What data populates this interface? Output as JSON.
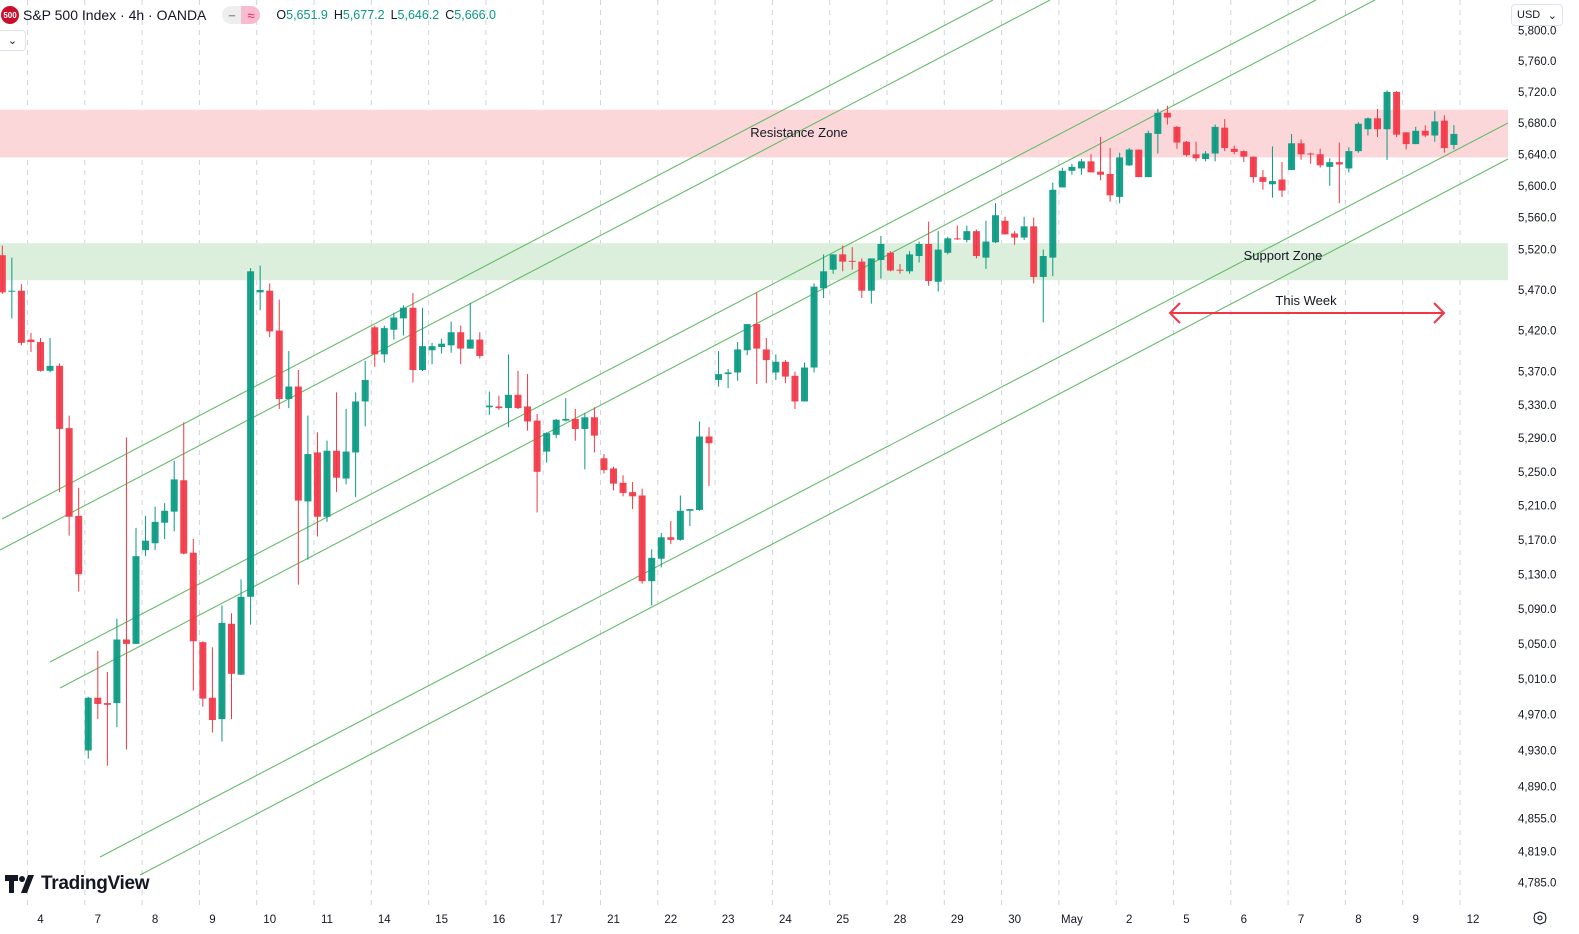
{
  "header": {
    "symbol_badge": "500",
    "title": "S&P 500 Index · 4h · OANDA",
    "pill_left_icon": "minus-icon",
    "pill_right_icon": "approx-icon",
    "pill_left_glyph": "−",
    "pill_right_glyph": "≈",
    "ohlc": {
      "o_label": "O",
      "o": "5,651.9",
      "h_label": "H",
      "h": "5,677.2",
      "l_label": "L",
      "l": "5,646.2",
      "c_label": "C",
      "c": "5,666.0"
    }
  },
  "collapse_button_glyph": "⌄",
  "currency": {
    "label": "USD",
    "chevron": "⌄"
  },
  "branding": {
    "logo_text": "TradingView"
  },
  "colors": {
    "up": "#089981",
    "down": "#F23645",
    "channel": "#66bb6a",
    "resistance_zone": "#fbd7da",
    "support_zone": "#dcefdc",
    "arrow": "#F23645"
  },
  "annotations": {
    "resistance": "Resistance Zone",
    "support": "Support Zone",
    "this_week": "This Week"
  },
  "chart_data": {
    "type": "candlestick",
    "title": "S&P 500 Index · 4h · OANDA",
    "y_scale": "log",
    "ylim": [
      4770,
      5820
    ],
    "grid": {
      "vertical": "dashed-daily",
      "horizontal": false
    },
    "y_ticks": [
      5800,
      5760,
      5720,
      5680,
      5640,
      5600,
      5560,
      5520,
      5470,
      5420,
      5370,
      5330,
      5290,
      5250,
      5210,
      5170,
      5130,
      5090,
      5050,
      5010,
      4970,
      4930,
      4890,
      4855,
      4819,
      4785
    ],
    "y_tick_labels": [
      "5,800.0",
      "5,760.0",
      "5,720.0",
      "5,680.0",
      "5,640.0",
      "5,600.0",
      "5,560.0",
      "5,520.0",
      "5,470.0",
      "5,420.0",
      "5,370.0",
      "5,330.0",
      "5,290.0",
      "5,250.0",
      "5,210.0",
      "5,170.0",
      "5,130.0",
      "5,090.0",
      "5,050.0",
      "5,010.0",
      "4,970.0",
      "4,930.0",
      "4,890.0",
      "4,855.0",
      "4,819.0",
      "4,785.0"
    ],
    "x_tick_labels": [
      "4",
      "7",
      "8",
      "9",
      "10",
      "11",
      "14",
      "15",
      "16",
      "17",
      "21",
      "22",
      "23",
      "24",
      "25",
      "28",
      "29",
      "30",
      "May",
      "2",
      "5",
      "6",
      "7",
      "8",
      "9",
      "12"
    ],
    "zones": [
      {
        "name": "Resistance Zone",
        "from": 5636,
        "to": 5697
      },
      {
        "name": "Support Zone",
        "from": 5482,
        "to": 5528
      }
    ],
    "candles_ohlc": [
      [
        5513,
        5525,
        5465,
        5467
      ],
      [
        5468,
        5510,
        5435,
        5469
      ],
      [
        5469,
        5477,
        5402,
        5405
      ],
      [
        5409,
        5417,
        5394,
        5406
      ],
      [
        5406,
        5411,
        5370,
        5371
      ],
      [
        5371,
        5411,
        5369,
        5377
      ],
      [
        5377,
        5380,
        5226,
        5301
      ],
      [
        5302,
        5317,
        5175,
        5197
      ],
      [
        5198,
        5231,
        5110,
        5130
      ],
      [
        4930,
        4990,
        4921,
        4989
      ],
      [
        4989,
        5042,
        4965,
        4982
      ],
      [
        4983,
        5018,
        4913,
        4981
      ],
      [
        4983,
        5079,
        4956,
        5055
      ],
      [
        5055,
        5291,
        4931,
        5050
      ],
      [
        5050,
        5184,
        5050,
        5151
      ],
      [
        5158,
        5198,
        5151,
        5169
      ],
      [
        5166,
        5209,
        5158,
        5191
      ],
      [
        5190,
        5213,
        5171,
        5204
      ],
      [
        5203,
        5263,
        5180,
        5241
      ],
      [
        5240,
        5309,
        5153,
        5154
      ],
      [
        5155,
        5171,
        4997,
        5053
      ],
      [
        5052,
        5053,
        4979,
        4988
      ],
      [
        4989,
        5046,
        4950,
        4964
      ],
      [
        4965,
        5094,
        4940,
        5074
      ],
      [
        5073,
        5085,
        4965,
        5016
      ],
      [
        5015,
        5124,
        5015,
        5104
      ],
      [
        5104,
        5497,
        5072,
        5493
      ],
      [
        5467,
        5500,
        5445,
        5470
      ],
      [
        5469,
        5478,
        5412,
        5419
      ],
      [
        5420,
        5458,
        5325,
        5337
      ],
      [
        5337,
        5395,
        5326,
        5352
      ],
      [
        5352,
        5372,
        5118,
        5216
      ],
      [
        5215,
        5317,
        5147,
        5271
      ],
      [
        5273,
        5297,
        5174,
        5197
      ],
      [
        5197,
        5287,
        5191,
        5275
      ],
      [
        5275,
        5345,
        5226,
        5243
      ],
      [
        5242,
        5325,
        5235,
        5274
      ],
      [
        5273,
        5345,
        5220,
        5334
      ],
      [
        5334,
        5383,
        5304,
        5360
      ],
      [
        5424,
        5426,
        5376,
        5391
      ],
      [
        5391,
        5426,
        5381,
        5423
      ],
      [
        5421,
        5442,
        5409,
        5436
      ],
      [
        5435,
        5451,
        5414,
        5448
      ],
      [
        5448,
        5466,
        5357,
        5372
      ],
      [
        5372,
        5448,
        5371,
        5401
      ],
      [
        5396,
        5405,
        5379,
        5401
      ],
      [
        5400,
        5410,
        5392,
        5404
      ],
      [
        5402,
        5431,
        5393,
        5418
      ],
      [
        5418,
        5426,
        5379,
        5398
      ],
      [
        5398,
        5454,
        5398,
        5409
      ],
      [
        5409,
        5418,
        5386,
        5389
      ],
      [
        5327,
        5346,
        5318,
        5329
      ],
      [
        5328,
        5341,
        5324,
        5326
      ],
      [
        5326,
        5391,
        5303,
        5342
      ],
      [
        5342,
        5371,
        5325,
        5326
      ],
      [
        5328,
        5367,
        5299,
        5310
      ],
      [
        5311,
        5319,
        5202,
        5250
      ],
      [
        5274,
        5297,
        5261,
        5296
      ],
      [
        5294,
        5313,
        5290,
        5312
      ],
      [
        5311,
        5338,
        5310,
        5313
      ],
      [
        5313,
        5325,
        5287,
        5301
      ],
      [
        5301,
        5320,
        5253,
        5315
      ],
      [
        5315,
        5327,
        5273,
        5293
      ],
      [
        5266,
        5271,
        5248,
        5252
      ],
      [
        5254,
        5256,
        5228,
        5236
      ],
      [
        5237,
        5246,
        5221,
        5225
      ],
      [
        5226,
        5238,
        5206,
        5221
      ],
      [
        5222,
        5230,
        5119,
        5122
      ],
      [
        5122,
        5159,
        5094,
        5149
      ],
      [
        5148,
        5178,
        5138,
        5173
      ],
      [
        5173,
        5192,
        5165,
        5170
      ],
      [
        5170,
        5222,
        5169,
        5204
      ],
      [
        5204,
        5206,
        5186,
        5206
      ],
      [
        5205,
        5310,
        5204,
        5292
      ],
      [
        5292,
        5303,
        5233,
        5284
      ],
      [
        5360,
        5395,
        5352,
        5367
      ],
      [
        5367,
        5373,
        5350,
        5369
      ],
      [
        5369,
        5406,
        5359,
        5397
      ],
      [
        5396,
        5428,
        5390,
        5428
      ],
      [
        5428,
        5467,
        5355,
        5398
      ],
      [
        5397,
        5411,
        5356,
        5384
      ],
      [
        5369,
        5391,
        5360,
        5382
      ],
      [
        5382,
        5384,
        5356,
        5364
      ],
      [
        5365,
        5370,
        5325,
        5334
      ],
      [
        5334,
        5381,
        5334,
        5375
      ],
      [
        5375,
        5478,
        5369,
        5474
      ],
      [
        5472,
        5514,
        5460,
        5493
      ],
      [
        5495,
        5514,
        5490,
        5514
      ],
      [
        5514,
        5525,
        5493,
        5505
      ],
      [
        5506,
        5523,
        5495,
        5505
      ],
      [
        5505,
        5509,
        5460,
        5469
      ],
      [
        5469,
        5509,
        5453,
        5509
      ],
      [
        5507,
        5537,
        5484,
        5527
      ],
      [
        5516,
        5518,
        5493,
        5494
      ],
      [
        5495,
        5502,
        5490,
        5494
      ],
      [
        5493,
        5518,
        5490,
        5514
      ],
      [
        5512,
        5530,
        5504,
        5527
      ],
      [
        5527,
        5555,
        5475,
        5481
      ],
      [
        5480,
        5543,
        5468,
        5520
      ],
      [
        5516,
        5536,
        5514,
        5534
      ],
      [
        5534,
        5550,
        5532,
        5533
      ],
      [
        5532,
        5550,
        5529,
        5543
      ],
      [
        5543,
        5545,
        5509,
        5512
      ],
      [
        5510,
        5556,
        5496,
        5530
      ],
      [
        5529,
        5578,
        5528,
        5563
      ],
      [
        5556,
        5561,
        5539,
        5539
      ],
      [
        5540,
        5543,
        5526,
        5535
      ],
      [
        5535,
        5561,
        5532,
        5549
      ],
      [
        5549,
        5560,
        5478,
        5486
      ],
      [
        5486,
        5520,
        5430,
        5512
      ],
      [
        5510,
        5604,
        5487,
        5595
      ],
      [
        5598,
        5623,
        5598,
        5619
      ],
      [
        5619,
        5628,
        5614,
        5624
      ],
      [
        5622,
        5634,
        5614,
        5631
      ],
      [
        5631,
        5640,
        5617,
        5617
      ],
      [
        5618,
        5662,
        5607,
        5614
      ],
      [
        5615,
        5648,
        5580,
        5588
      ],
      [
        5586,
        5642,
        5578,
        5636
      ],
      [
        5626,
        5648,
        5625,
        5646
      ],
      [
        5646,
        5646,
        5611,
        5611
      ],
      [
        5611,
        5670,
        5611,
        5667
      ],
      [
        5666,
        5698,
        5641,
        5693
      ],
      [
        5693,
        5702,
        5678,
        5687
      ],
      [
        5675,
        5676,
        5647,
        5655
      ],
      [
        5656,
        5657,
        5637,
        5639
      ],
      [
        5640,
        5656,
        5631,
        5635
      ],
      [
        5634,
        5644,
        5631,
        5641
      ],
      [
        5641,
        5678,
        5631,
        5675
      ],
      [
        5674,
        5685,
        5644,
        5648
      ],
      [
        5647,
        5651,
        5640,
        5643
      ],
      [
        5644,
        5645,
        5630,
        5637
      ],
      [
        5637,
        5637,
        5604,
        5611
      ],
      [
        5611,
        5620,
        5595,
        5605
      ],
      [
        5602,
        5650,
        5585,
        5606
      ],
      [
        5608,
        5630,
        5586,
        5594
      ],
      [
        5620,
        5666,
        5620,
        5654
      ],
      [
        5654,
        5659,
        5633,
        5640
      ],
      [
        5641,
        5642,
        5628,
        5640
      ],
      [
        5640,
        5647,
        5623,
        5626
      ],
      [
        5624,
        5635,
        5600,
        5630
      ],
      [
        5630,
        5655,
        5578,
        5627
      ],
      [
        5622,
        5649,
        5617,
        5644
      ],
      [
        5644,
        5681,
        5642,
        5679
      ],
      [
        5672,
        5687,
        5664,
        5686
      ],
      [
        5686,
        5698,
        5662,
        5672
      ],
      [
        5672,
        5722,
        5633,
        5720
      ],
      [
        5720,
        5721,
        5662,
        5665
      ],
      [
        5668,
        5668,
        5646,
        5653
      ],
      [
        5653,
        5675,
        5653,
        5670
      ],
      [
        5670,
        5677,
        5662,
        5664
      ],
      [
        5664,
        5695,
        5656,
        5682
      ],
      [
        5683,
        5690,
        5642,
        5648
      ],
      [
        5651.9,
        5677.2,
        5646.2,
        5666.0
      ]
    ]
  }
}
